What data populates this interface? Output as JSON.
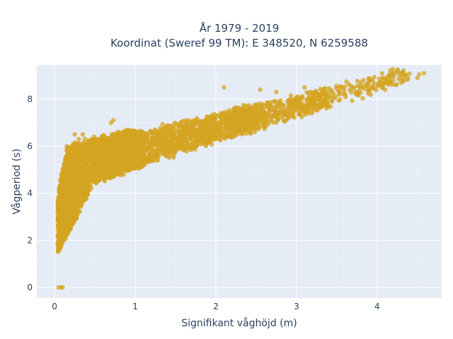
{
  "chart_data": {
    "type": "scatter",
    "title_line1": "År 1979 - 2019",
    "title_line2": "Koordinat (Sweref 99 TM): E 348520, N 6259588",
    "xlabel": "Signifikant våghöjd (m)",
    "ylabel": "Vågperiod (s)",
    "xlim": [
      -0.22,
      4.8
    ],
    "ylim": [
      -0.45,
      9.45
    ],
    "x_ticks": [
      0,
      1,
      2,
      3,
      4
    ],
    "y_ticks": [
      0,
      2,
      4,
      6,
      8
    ],
    "grid": true,
    "legend": "none",
    "marker_color": "#d4a421",
    "background_color": "#e5ecf6",
    "outlier_points": [
      [
        0.05,
        0.0
      ],
      [
        0.08,
        0.0
      ],
      [
        0.1,
        0.0
      ],
      [
        0.25,
        6.5
      ],
      [
        0.35,
        6.5
      ],
      [
        0.3,
        6.3
      ],
      [
        0.7,
        7.0
      ],
      [
        0.73,
        7.1
      ],
      [
        0.9,
        6.6
      ],
      [
        2.1,
        8.5
      ],
      [
        2.55,
        8.4
      ],
      [
        2.75,
        8.3
      ],
      [
        3.1,
        8.5
      ],
      [
        3.7,
        8.5
      ],
      [
        3.75,
        8.3
      ],
      [
        4.3,
        8.7
      ],
      [
        4.5,
        8.9
      ],
      [
        4.58,
        9.1
      ],
      [
        4.52,
        9.05
      ],
      [
        4.1,
        8.4
      ]
    ]
  }
}
